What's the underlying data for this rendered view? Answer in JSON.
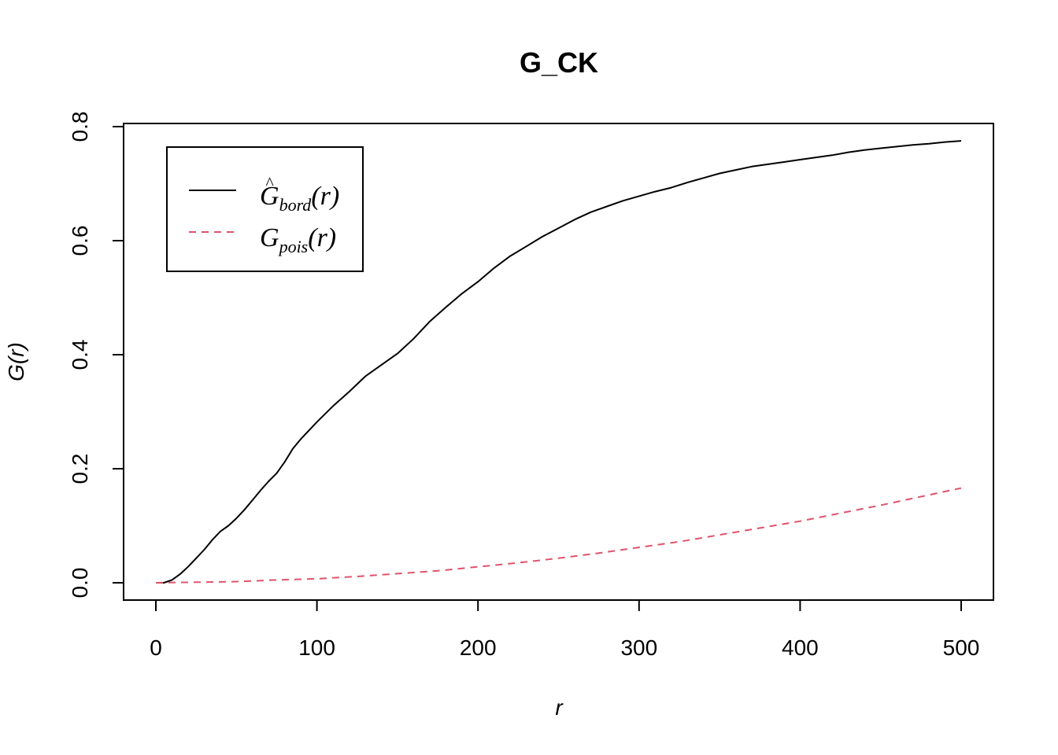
{
  "chart_data": {
    "type": "line",
    "title": "G_CK",
    "xlabel": "r",
    "ylabel": "G(r)",
    "xlim": [
      0,
      500
    ],
    "ylim": [
      0,
      0.8
    ],
    "x_ticks": [
      0,
      100,
      200,
      300,
      400,
      500
    ],
    "x_tick_labels": [
      "0",
      "100",
      "200",
      "300",
      "400",
      "500"
    ],
    "y_ticks": [
      0.0,
      0.2,
      0.4,
      0.6,
      0.8
    ],
    "y_tick_labels": [
      "0.0",
      "0.2",
      "0.4",
      "0.6",
      "0.8"
    ],
    "grid": false,
    "legend_position": "top-left",
    "series": [
      {
        "name": "Ĝbord(r)",
        "legend_base": "G",
        "legend_sub": "bord",
        "legend_tail": "(r)",
        "legend_hat": "^",
        "color": "#000000",
        "dash": "solid",
        "x": [
          0,
          5,
          10,
          15,
          20,
          25,
          30,
          35,
          40,
          45,
          50,
          55,
          60,
          65,
          70,
          75,
          80,
          85,
          90,
          100,
          110,
          120,
          130,
          140,
          150,
          160,
          170,
          180,
          190,
          200,
          210,
          220,
          230,
          240,
          250,
          260,
          270,
          280,
          290,
          300,
          310,
          320,
          330,
          340,
          350,
          360,
          370,
          380,
          390,
          400,
          410,
          420,
          430,
          440,
          450,
          460,
          470,
          480,
          490,
          500
        ],
        "y": [
          0.0,
          0.0,
          0.005,
          0.015,
          0.028,
          0.043,
          0.058,
          0.075,
          0.09,
          0.1,
          0.113,
          0.128,
          0.145,
          0.162,
          0.178,
          0.192,
          0.212,
          0.235,
          0.252,
          0.282,
          0.31,
          0.335,
          0.362,
          0.382,
          0.402,
          0.428,
          0.458,
          0.483,
          0.507,
          0.528,
          0.552,
          0.573,
          0.59,
          0.607,
          0.622,
          0.637,
          0.65,
          0.66,
          0.67,
          0.678,
          0.686,
          0.693,
          0.702,
          0.71,
          0.718,
          0.724,
          0.73,
          0.734,
          0.738,
          0.742,
          0.746,
          0.75,
          0.755,
          0.759,
          0.762,
          0.765,
          0.768,
          0.77,
          0.773,
          0.775
        ]
      },
      {
        "name": "Gpois(r)",
        "legend_base": "G",
        "legend_sub": "pois",
        "legend_tail": "(r)",
        "legend_hat": "",
        "color": "#DF536B",
        "dash": "dashed",
        "x": [
          0,
          25,
          50,
          75,
          100,
          125,
          150,
          175,
          200,
          225,
          250,
          275,
          300,
          325,
          350,
          375,
          400,
          425,
          450,
          475,
          500
        ],
        "y": [
          0.0,
          0.001,
          0.002,
          0.005,
          0.007,
          0.011,
          0.016,
          0.021,
          0.028,
          0.035,
          0.043,
          0.052,
          0.062,
          0.072,
          0.084,
          0.096,
          0.108,
          0.122,
          0.136,
          0.151,
          0.166
        ]
      }
    ]
  }
}
